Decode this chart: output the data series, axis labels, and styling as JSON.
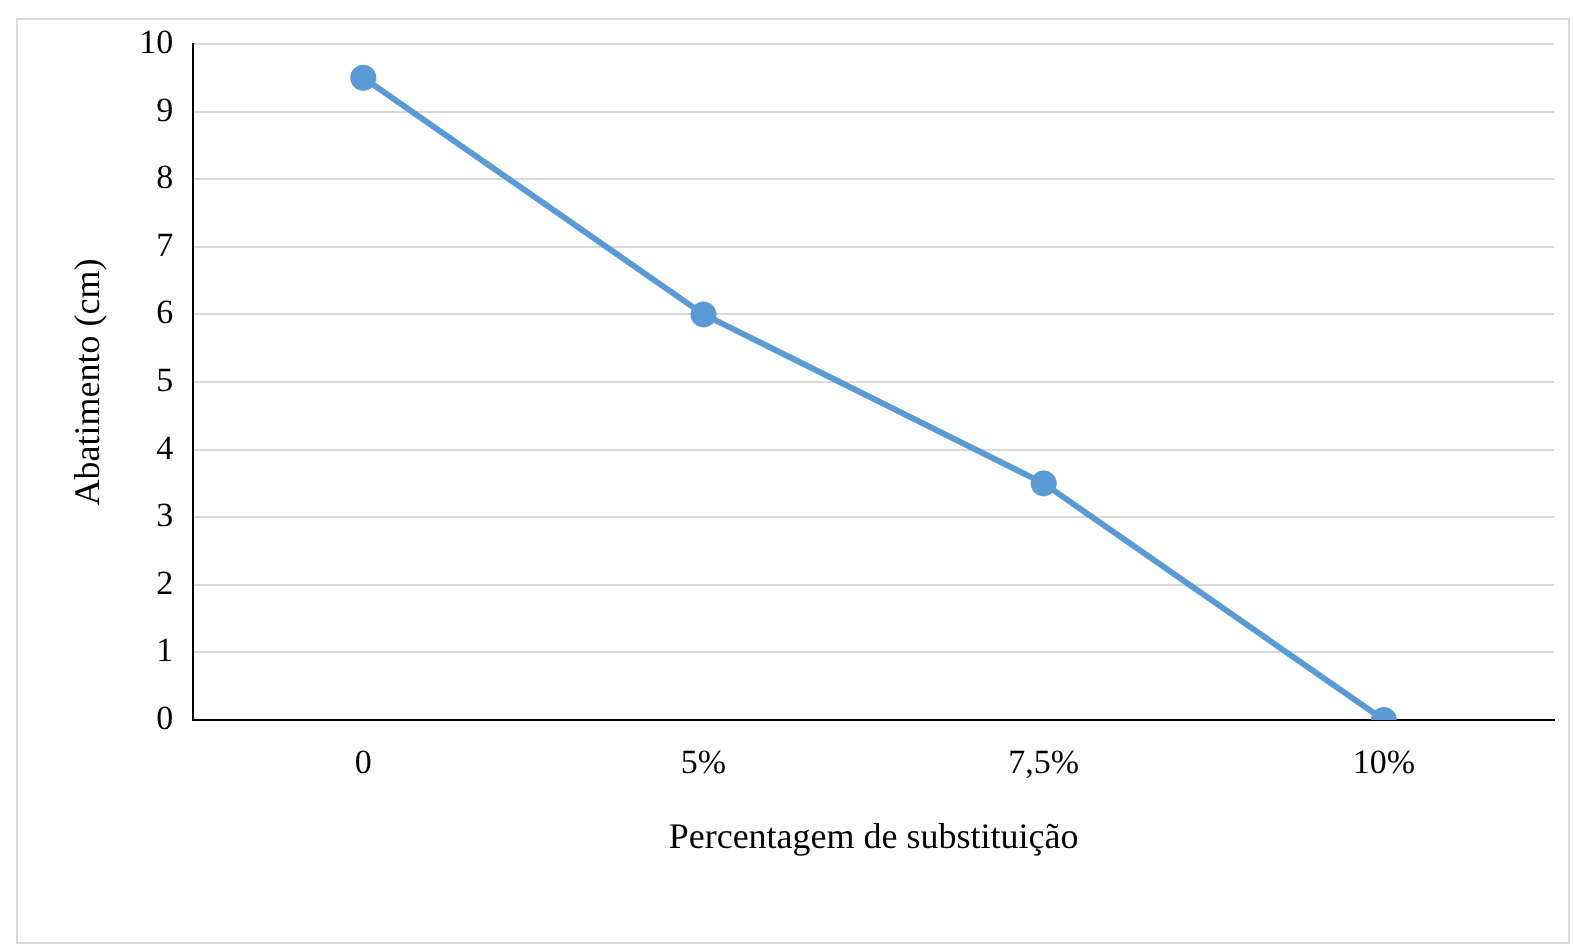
{
  "chart_data": {
    "type": "line",
    "xlabel": "Percentagem de substituição",
    "ylabel": "Abatimento (cm)",
    "categories": [
      "0",
      "5%",
      "7,5%",
      "10%"
    ],
    "series": [
      {
        "color": "#5b9bd5",
        "values": [
          9.5,
          6,
          3.5,
          0
        ]
      }
    ],
    "ylim": [
      0,
      10
    ],
    "yticks": [
      0,
      1,
      2,
      3,
      4,
      5,
      6,
      7,
      8,
      9,
      10
    ],
    "grid": "y",
    "legend": false,
    "marker": "circle",
    "line_style": "solid"
  }
}
